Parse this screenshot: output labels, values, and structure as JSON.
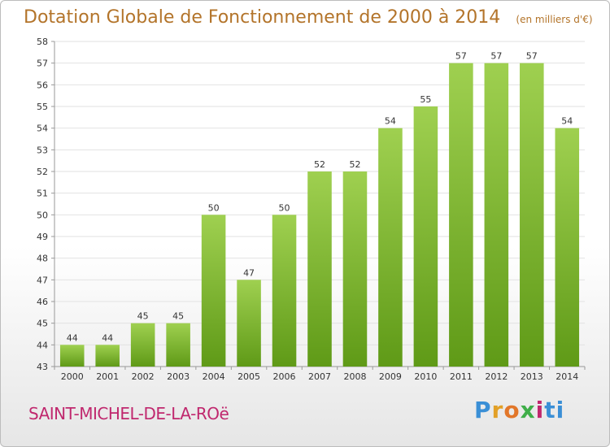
{
  "header": {
    "title": "Dotation Globale de Fonctionnement de 2000 à 2014",
    "subtitle": "(en milliers d'€)"
  },
  "footer": {
    "commune": "SAINT-MICHEL-DE-LA-ROë",
    "logo_text": "Proxiti"
  },
  "colors": {
    "title": "#b3742a",
    "commune": "#c0286e",
    "bar_top": "#9fd050",
    "bar_bottom": "#5f9a17",
    "grid": "#e2e2e2"
  },
  "chart_data": {
    "type": "bar",
    "title": "Dotation Globale de Fonctionnement de 2000 à 2014",
    "subtitle": "(en milliers d'€)",
    "xlabel": "",
    "ylabel": "",
    "categories": [
      "2000",
      "2001",
      "2002",
      "2003",
      "2004",
      "2005",
      "2006",
      "2007",
      "2008",
      "2009",
      "2010",
      "2011",
      "2012",
      "2013",
      "2014"
    ],
    "values": [
      44,
      44,
      45,
      45,
      50,
      47,
      50,
      52,
      52,
      54,
      55,
      57,
      57,
      57,
      54
    ],
    "ylim": [
      43,
      58
    ],
    "yticks": [
      43,
      44,
      45,
      46,
      47,
      48,
      49,
      50,
      51,
      52,
      53,
      54,
      55,
      56,
      57,
      58
    ],
    "grid": true,
    "legend": "none"
  }
}
